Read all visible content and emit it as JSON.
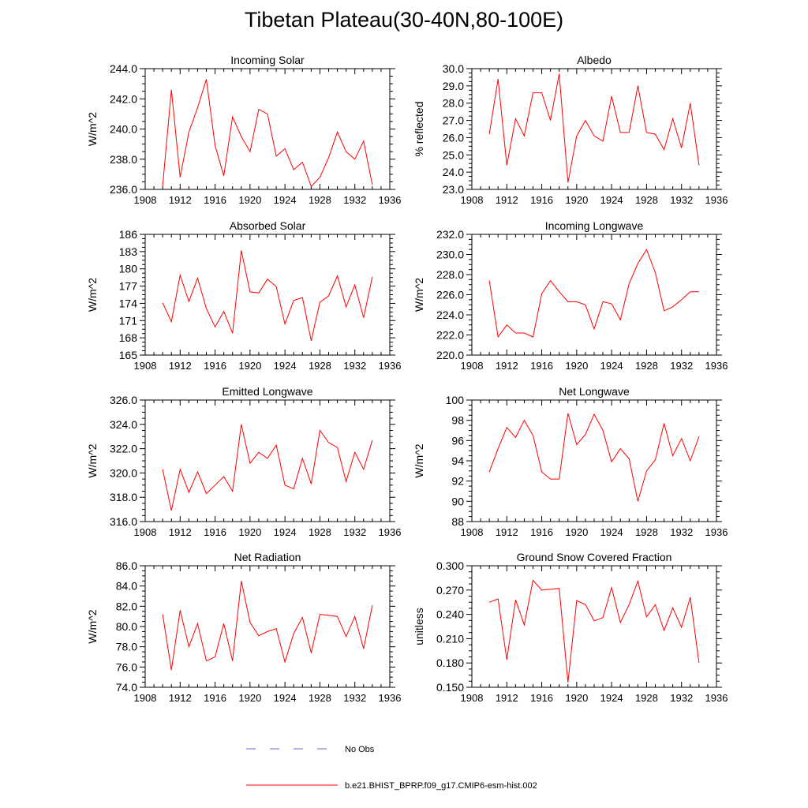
{
  "title": "Tibetan Plateau(30-40N,80-100E)",
  "colors": {
    "model": "#ff0000",
    "obs": "#6666cc",
    "axis": "#000000"
  },
  "legend": {
    "entries": [
      {
        "label": "No Obs",
        "color": "#6666cc",
        "style": "dashed"
      },
      {
        "label": "b.e21.BHIST_BPRP.f09_g17.CMIP6-esm-hist.002",
        "color": "#ff0000",
        "style": "solid"
      }
    ]
  },
  "chart_data": [
    {
      "type": "line",
      "title": "Incoming Solar",
      "ylabel": "W/m^2",
      "xlim": [
        1908,
        1936
      ],
      "xticks": [
        "1908",
        "1912",
        "1916",
        "1920",
        "1924",
        "1928",
        "1932",
        "1936"
      ],
      "ylim": [
        236.0,
        244.0
      ],
      "yticks": [
        "236.0",
        "238.0",
        "240.0",
        "242.0",
        "244.0"
      ],
      "x": [
        1910,
        1911,
        1912,
        1913,
        1914,
        1915,
        1916,
        1917,
        1918,
        1919,
        1920,
        1921,
        1922,
        1923,
        1924,
        1925,
        1926,
        1927,
        1928,
        1929,
        1930,
        1931,
        1932,
        1933,
        1934
      ],
      "series": [
        {
          "name": "b.e21.BHIST_BPRP.f09_g17.CMIP6-esm-hist.002",
          "values": [
            236.2,
            242.6,
            236.8,
            239.8,
            241.4,
            243.3,
            238.9,
            236.9,
            240.8,
            239.5,
            238.5,
            241.3,
            241.0,
            238.2,
            238.7,
            237.3,
            237.8,
            236.2,
            236.8,
            238.1,
            239.8,
            238.5,
            238.0,
            239.2,
            236.3
          ]
        }
      ]
    },
    {
      "type": "line",
      "title": "Albedo",
      "ylabel": "% reflected",
      "xlim": [
        1908,
        1936
      ],
      "xticks": [
        "1908",
        "1912",
        "1916",
        "1920",
        "1924",
        "1928",
        "1932",
        "1936"
      ],
      "ylim": [
        23.0,
        30.0
      ],
      "yticks": [
        "23.0",
        "24.0",
        "25.0",
        "26.0",
        "27.0",
        "28.0",
        "29.0",
        "30.0"
      ],
      "x": [
        1910,
        1911,
        1912,
        1913,
        1914,
        1915,
        1916,
        1917,
        1918,
        1919,
        1920,
        1921,
        1922,
        1923,
        1924,
        1925,
        1926,
        1927,
        1928,
        1929,
        1930,
        1931,
        1932,
        1933,
        1934
      ],
      "series": [
        {
          "name": "b.e21.BHIST_BPRP.f09_g17.CMIP6-esm-hist.002",
          "values": [
            26.2,
            29.4,
            24.4,
            27.1,
            26.1,
            28.6,
            28.6,
            27.0,
            29.7,
            23.4,
            26.1,
            27.0,
            26.1,
            25.8,
            28.4,
            26.3,
            26.3,
            29.0,
            26.3,
            26.2,
            25.3,
            27.1,
            25.4,
            28.0,
            24.4
          ]
        }
      ]
    },
    {
      "type": "line",
      "title": "Absorbed Solar",
      "ylabel": "W/m^2",
      "xlim": [
        1908,
        1936
      ],
      "xticks": [
        "1908",
        "1912",
        "1916",
        "1920",
        "1924",
        "1928",
        "1932",
        "1936"
      ],
      "ylim": [
        165,
        186
      ],
      "yticks": [
        "165",
        "168",
        "171",
        "174",
        "177",
        "180",
        "183",
        "186"
      ],
      "x": [
        1910,
        1911,
        1912,
        1913,
        1914,
        1915,
        1916,
        1917,
        1918,
        1919,
        1920,
        1921,
        1922,
        1923,
        1924,
        1925,
        1926,
        1927,
        1928,
        1929,
        1930,
        1931,
        1932,
        1933,
        1934
      ],
      "series": [
        {
          "name": "b.e21.BHIST_BPRP.f09_g17.CMIP6-esm-hist.002",
          "values": [
            174.1,
            170.8,
            178.9,
            174.3,
            178.4,
            173.1,
            169.9,
            172.6,
            168.8,
            183.2,
            176.0,
            175.8,
            178.2,
            176.9,
            170.4,
            174.5,
            175.0,
            167.5,
            174.2,
            175.3,
            178.8,
            173.4,
            177.2,
            171.5,
            178.6
          ]
        }
      ]
    },
    {
      "type": "line",
      "title": "Incoming Longwave",
      "ylabel": "W/m^2",
      "xlim": [
        1908,
        1936
      ],
      "xticks": [
        "1908",
        "1912",
        "1916",
        "1920",
        "1924",
        "1928",
        "1932",
        "1936"
      ],
      "ylim": [
        220.0,
        232.0
      ],
      "yticks": [
        "220.0",
        "222.0",
        "224.0",
        "226.0",
        "228.0",
        "230.0",
        "232.0"
      ],
      "x": [
        1910,
        1911,
        1912,
        1913,
        1914,
        1915,
        1916,
        1917,
        1918,
        1919,
        1920,
        1921,
        1922,
        1923,
        1924,
        1925,
        1926,
        1927,
        1928,
        1929,
        1930,
        1931,
        1932,
        1933,
        1934
      ],
      "series": [
        {
          "name": "b.e21.BHIST_BPRP.f09_g17.CMIP6-esm-hist.002",
          "values": [
            227.4,
            221.8,
            223.0,
            222.2,
            222.2,
            221.8,
            226.1,
            227.4,
            226.3,
            225.3,
            225.3,
            225.0,
            222.6,
            225.3,
            225.1,
            223.5,
            227.1,
            229.1,
            230.5,
            228.2,
            224.4,
            224.8,
            225.5,
            226.3,
            226.3
          ]
        }
      ]
    },
    {
      "type": "line",
      "title": "Emitted Longwave",
      "ylabel": "W/m^2",
      "xlim": [
        1908,
        1936
      ],
      "xticks": [
        "1908",
        "1912",
        "1916",
        "1920",
        "1924",
        "1928",
        "1932",
        "1936"
      ],
      "ylim": [
        316.0,
        326.0
      ],
      "yticks": [
        "316.0",
        "318.0",
        "320.0",
        "322.0",
        "324.0",
        "326.0"
      ],
      "x": [
        1910,
        1911,
        1912,
        1913,
        1914,
        1915,
        1916,
        1917,
        1918,
        1919,
        1920,
        1921,
        1922,
        1923,
        1924,
        1925,
        1926,
        1927,
        1928,
        1929,
        1930,
        1931,
        1932,
        1933,
        1934
      ],
      "series": [
        {
          "name": "b.e21.BHIST_BPRP.f09_g17.CMIP6-esm-hist.002",
          "values": [
            320.3,
            316.9,
            320.3,
            318.4,
            320.1,
            318.3,
            319.0,
            319.7,
            318.5,
            324.0,
            320.8,
            321.7,
            321.2,
            322.3,
            319.0,
            318.7,
            321.2,
            319.1,
            323.5,
            322.5,
            322.1,
            319.3,
            321.7,
            320.3,
            322.7
          ]
        }
      ]
    },
    {
      "type": "line",
      "title": "Net Longwave",
      "ylabel": "W/m^2",
      "xlim": [
        1908,
        1936
      ],
      "xticks": [
        "1908",
        "1912",
        "1916",
        "1920",
        "1924",
        "1928",
        "1932",
        "1936"
      ],
      "ylim": [
        88,
        100
      ],
      "yticks": [
        "88",
        "90",
        "92",
        "94",
        "96",
        "98",
        "100"
      ],
      "x": [
        1910,
        1911,
        1912,
        1913,
        1914,
        1915,
        1916,
        1917,
        1918,
        1919,
        1920,
        1921,
        1922,
        1923,
        1924,
        1925,
        1926,
        1927,
        1928,
        1929,
        1930,
        1931,
        1932,
        1933,
        1934
      ],
      "series": [
        {
          "name": "b.e21.BHIST_BPRP.f09_g17.CMIP6-esm-hist.002",
          "values": [
            92.9,
            95.2,
            97.3,
            96.3,
            98.0,
            96.5,
            92.9,
            92.2,
            92.2,
            98.7,
            95.6,
            96.6,
            98.6,
            97.0,
            93.9,
            95.2,
            94.2,
            90.0,
            93.0,
            94.1,
            97.7,
            94.5,
            96.2,
            94.0,
            96.4
          ]
        }
      ]
    },
    {
      "type": "line",
      "title": "Net Radiation",
      "ylabel": "W/m^2",
      "xlim": [
        1908,
        1936
      ],
      "xticks": [
        "1908",
        "1912",
        "1916",
        "1920",
        "1924",
        "1928",
        "1932",
        "1936"
      ],
      "ylim": [
        74.0,
        86.0
      ],
      "yticks": [
        "74.0",
        "76.0",
        "78.0",
        "80.0",
        "82.0",
        "84.0",
        "86.0"
      ],
      "x": [
        1910,
        1911,
        1912,
        1913,
        1914,
        1915,
        1916,
        1917,
        1918,
        1919,
        1920,
        1921,
        1922,
        1923,
        1924,
        1925,
        1926,
        1927,
        1928,
        1929,
        1930,
        1931,
        1932,
        1933,
        1934
      ],
      "series": [
        {
          "name": "b.e21.BHIST_BPRP.f09_g17.CMIP6-esm-hist.002",
          "values": [
            81.2,
            75.7,
            81.6,
            78.0,
            80.3,
            76.6,
            77.0,
            80.3,
            76.6,
            84.5,
            80.4,
            79.1,
            79.5,
            79.8,
            76.5,
            79.3,
            80.9,
            77.4,
            81.2,
            81.1,
            81.0,
            79.0,
            81.0,
            77.8,
            82.1
          ]
        }
      ]
    },
    {
      "type": "line",
      "title": "Ground Snow Covered Fraction",
      "ylabel": "unitless",
      "xlim": [
        1908,
        1936
      ],
      "xticks": [
        "1908",
        "1912",
        "1916",
        "1920",
        "1924",
        "1928",
        "1932",
        "1936"
      ],
      "ylim": [
        0.15,
        0.3
      ],
      "yticks": [
        "0.150",
        "0.180",
        "0.210",
        "0.240",
        "0.270",
        "0.300"
      ],
      "x": [
        1910,
        1911,
        1912,
        1913,
        1914,
        1915,
        1916,
        1917,
        1918,
        1919,
        1920,
        1921,
        1922,
        1923,
        1924,
        1925,
        1926,
        1927,
        1928,
        1929,
        1930,
        1931,
        1932,
        1933,
        1934
      ],
      "series": [
        {
          "name": "b.e21.BHIST_BPRP.f09_g17.CMIP6-esm-hist.002",
          "values": [
            0.255,
            0.259,
            0.184,
            0.258,
            0.227,
            0.282,
            0.27,
            0.271,
            0.272,
            0.156,
            0.257,
            0.252,
            0.232,
            0.236,
            0.273,
            0.23,
            0.252,
            0.281,
            0.237,
            0.252,
            0.22,
            0.248,
            0.224,
            0.261,
            0.18
          ]
        }
      ]
    }
  ]
}
